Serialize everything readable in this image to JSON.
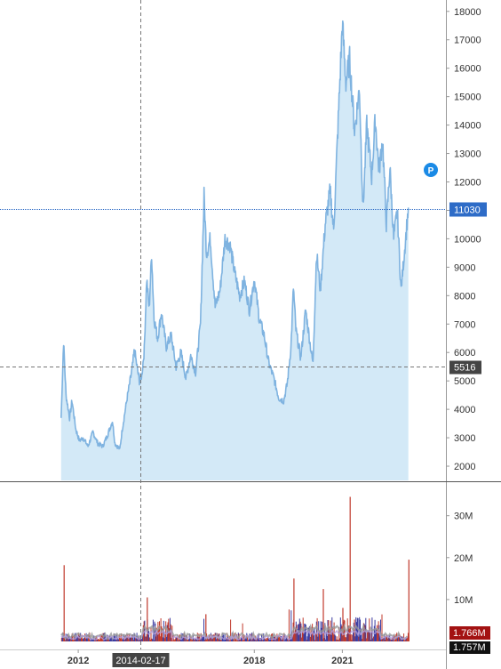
{
  "chart_data": [
    {
      "type": "area",
      "title": "",
      "xlabel": "",
      "ylabel": "",
      "x_ticks": [
        "2012",
        "2018",
        "2021"
      ],
      "xlim": [
        "2009-05-01",
        "2024-07-01"
      ],
      "y_ticks": [
        2000,
        3000,
        4000,
        5000,
        6000,
        7000,
        8000,
        9000,
        10000,
        11000,
        12000,
        13000,
        14000,
        15000,
        16000,
        17000,
        18000
      ],
      "ylim": [
        1500,
        18400
      ],
      "grid": false,
      "colors": {
        "line": "#7fb3e0",
        "fill": "#d3e9f7"
      },
      "series": [
        {
          "points": [
            [
              "2011-06-01",
              3700
            ],
            [
              "2011-07-01",
              6400
            ],
            [
              "2011-08-01",
              4500
            ],
            [
              "2011-09-15",
              3700
            ],
            [
              "2011-10-15",
              4300
            ],
            [
              "2011-12-01",
              3300
            ],
            [
              "2012-01-15",
              2900
            ],
            [
              "2012-03-01",
              3000
            ],
            [
              "2012-05-01",
              2700
            ],
            [
              "2012-07-01",
              3200
            ],
            [
              "2012-09-01",
              2800
            ],
            [
              "2012-11-01",
              2700
            ],
            [
              "2013-01-01",
              3100
            ],
            [
              "2013-03-01",
              3600
            ],
            [
              "2013-04-01",
              2800
            ],
            [
              "2013-06-01",
              2600
            ],
            [
              "2013-07-01",
              3300
            ],
            [
              "2013-09-01",
              4400
            ],
            [
              "2013-11-01",
              5400
            ],
            [
              "2013-12-01",
              6100
            ],
            [
              "2014-01-01",
              5500
            ],
            [
              "2014-02-01",
              5000
            ],
            [
              "2014-03-01",
              5200
            ],
            [
              "2014-04-01",
              6100
            ],
            [
              "2014-05-01",
              8600
            ],
            [
              "2014-06-01",
              7500
            ],
            [
              "2014-07-01",
              9500
            ],
            [
              "2014-08-01",
              7200
            ],
            [
              "2014-09-15",
              6500
            ],
            [
              "2014-11-01",
              7400
            ],
            [
              "2015-01-01",
              6200
            ],
            [
              "2015-03-01",
              6600
            ],
            [
              "2015-05-01",
              5500
            ],
            [
              "2015-07-01",
              6000
            ],
            [
              "2015-09-01",
              5100
            ],
            [
              "2015-11-01",
              5900
            ],
            [
              "2016-01-01",
              5300
            ],
            [
              "2016-03-01",
              7000
            ],
            [
              "2016-04-15",
              11500
            ],
            [
              "2016-05-15",
              9500
            ],
            [
              "2016-07-01",
              10000
            ],
            [
              "2016-09-01",
              7600
            ],
            [
              "2016-11-01",
              8200
            ],
            [
              "2017-01-01",
              10000
            ],
            [
              "2017-03-01",
              9800
            ],
            [
              "2017-05-01",
              8800
            ],
            [
              "2017-07-01",
              8000
            ],
            [
              "2017-09-01",
              8500
            ],
            [
              "2017-11-01",
              7500
            ],
            [
              "2018-01-01",
              8600
            ],
            [
              "2018-03-01",
              7200
            ],
            [
              "2018-05-01",
              6600
            ],
            [
              "2018-07-01",
              5600
            ],
            [
              "2018-09-01",
              5100
            ],
            [
              "2018-11-01",
              4400
            ],
            [
              "2019-01-01",
              4300
            ],
            [
              "2019-02-15",
              4900
            ],
            [
              "2019-04-01",
              6200
            ],
            [
              "2019-05-01",
              8300
            ],
            [
              "2019-06-01",
              6800
            ],
            [
              "2019-08-01",
              5800
            ],
            [
              "2019-10-01",
              7500
            ],
            [
              "2019-12-01",
              6200
            ],
            [
              "2020-01-01",
              5600
            ],
            [
              "2020-02-15",
              9500
            ],
            [
              "2020-04-01",
              8200
            ],
            [
              "2020-06-01",
              10500
            ],
            [
              "2020-08-01",
              11700
            ],
            [
              "2020-09-15",
              10300
            ],
            [
              "2020-11-01",
              13500
            ],
            [
              "2021-01-01",
              17600
            ],
            [
              "2021-02-15",
              15500
            ],
            [
              "2021-04-01",
              16300
            ],
            [
              "2021-06-01",
              13800
            ],
            [
              "2021-08-01",
              15300
            ],
            [
              "2021-09-15",
              11000
            ],
            [
              "2021-11-01",
              14000
            ],
            [
              "2022-01-01",
              12200
            ],
            [
              "2022-02-15",
              14200
            ],
            [
              "2022-04-01",
              12400
            ],
            [
              "2022-05-15",
              13500
            ],
            [
              "2022-07-01",
              10500
            ],
            [
              "2022-08-15",
              12500
            ],
            [
              "2022-10-01",
              10000
            ],
            [
              "2022-11-15",
              11000
            ],
            [
              "2023-01-01",
              8200
            ],
            [
              "2023-02-15",
              9600
            ],
            [
              "2023-04-01",
              11100
            ]
          ]
        }
      ],
      "annotations": {
        "last_price": 11030,
        "crosshair_price": 5516,
        "crosshair_date": "2014-02-17",
        "marker": "P"
      }
    },
    {
      "type": "bar",
      "title": "",
      "xlabel": "",
      "ylabel": "",
      "y_ticks": [
        10,
        20,
        30
      ],
      "y_tick_labels": [
        "10M",
        "20M",
        "30M"
      ],
      "ylim": [
        0,
        38
      ],
      "unit": "M",
      "grid": false,
      "colors": {
        "up": "#c0392b",
        "down": "#3a3aa0",
        "avg_a": "#999999",
        "avg_b": "#b39ddb"
      },
      "volume_spikes": [
        [
          "2011-07-01",
          18.2
        ],
        [
          "2014-05-01",
          10.5
        ],
        [
          "2016-05-01",
          6.5
        ],
        [
          "2019-05-01",
          15.0
        ],
        [
          "2020-05-01",
          12.5
        ],
        [
          "2021-01-01",
          8.0
        ],
        [
          "2021-04-01",
          34.5
        ],
        [
          "2023-04-01",
          19.5
        ]
      ],
      "badges": {
        "volume": "1.766M",
        "volume_avg": "1.757M"
      }
    }
  ]
}
